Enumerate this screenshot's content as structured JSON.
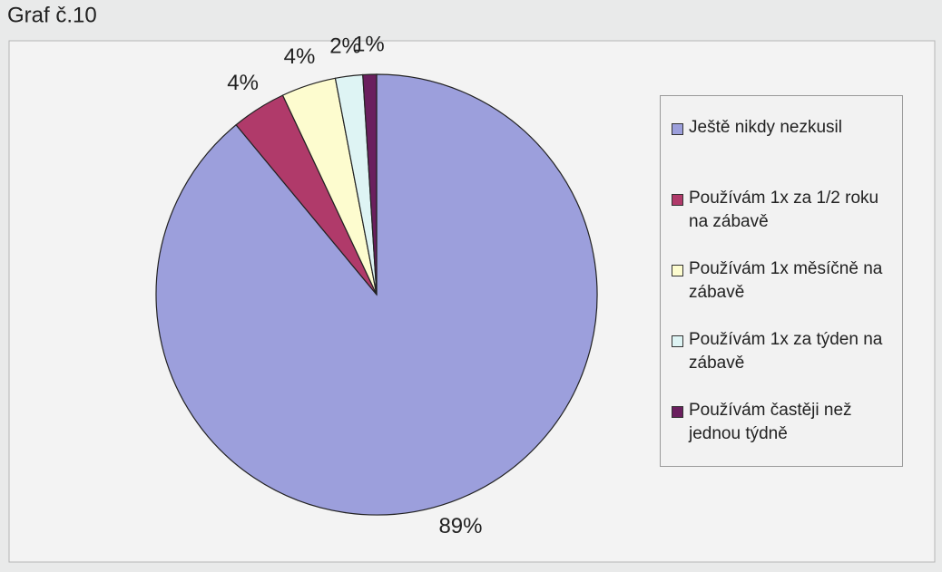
{
  "chart_data": {
    "type": "pie",
    "title": "Graf č.10",
    "categories": [
      "Ještě nikdy nezkusil",
      "Používám 1x za 1/2 roku na zábavě",
      "Používám 1x měsíčně na zábavě",
      "Používám 1x za týden na zábavě",
      "Používám častěji než jednou týdně"
    ],
    "values": [
      89,
      4,
      4,
      2,
      1
    ],
    "value_labels": [
      "89%",
      "4%",
      "4%",
      "2%",
      "1%"
    ],
    "colors": [
      "#9c9fdc",
      "#b03a6a",
      "#fdfccf",
      "#def4f4",
      "#6a1f5e"
    ],
    "legend": "right"
  }
}
